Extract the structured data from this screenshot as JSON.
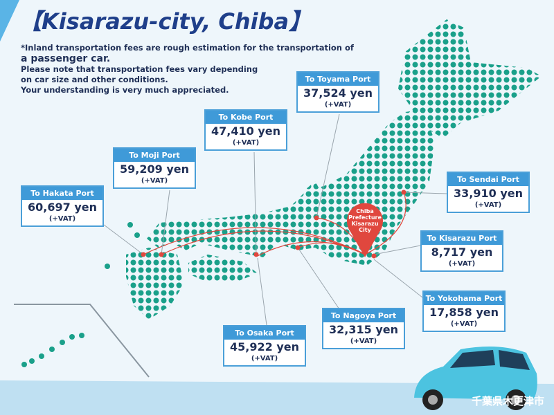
{
  "header": {
    "title": "【Kisarazu-city, Chiba】",
    "notes": [
      "*Inland transportation fees are rough estimation for the transportation of",
      "a passenger car.",
      "Please note that transportation fees vary depending",
      "on car size and other conditions.",
      "Your understanding is very much appreciated."
    ]
  },
  "marker": {
    "lines": [
      "Chiba",
      "Prefecture",
      "Kisarazu",
      "City"
    ]
  },
  "ports": [
    {
      "name": "To Hakata Port",
      "price": "60,697 yen",
      "vat": "(+VAT)"
    },
    {
      "name": "To Moji Port",
      "price": "59,209 yen",
      "vat": "(+VAT)"
    },
    {
      "name": "To Kobe Port",
      "price": "47,410 yen",
      "vat": "(+VAT)"
    },
    {
      "name": "To Toyama Port",
      "price": "37,524 yen",
      "vat": "(+VAT)"
    },
    {
      "name": "To Sendai Port",
      "price": "33,910 yen",
      "vat": "(+VAT)"
    },
    {
      "name": "To Kisarazu Port",
      "price": "8,717 yen",
      "vat": "(+VAT)"
    },
    {
      "name": "To Yokohama Port",
      "price": "17,858 yen",
      "vat": "(+VAT)"
    },
    {
      "name": "To Nagoya Port",
      "price": "32,315 yen",
      "vat": "(+VAT)"
    },
    {
      "name": "To Osaka Port",
      "price": "45,922 yen",
      "vat": "(+VAT)"
    }
  ],
  "footer": {
    "text": "千葉県木更津市"
  }
}
